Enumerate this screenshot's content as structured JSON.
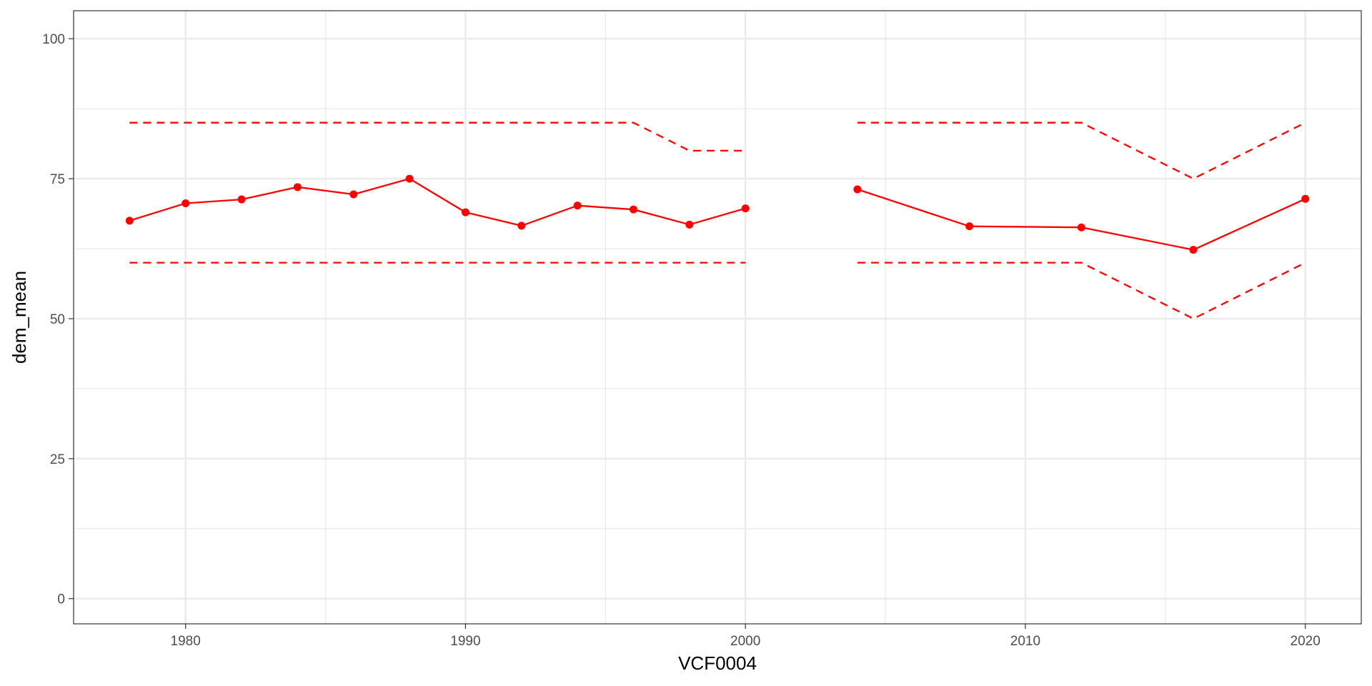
{
  "chart_data": {
    "type": "line",
    "xlabel": "VCF0004",
    "ylabel": "dem_mean",
    "xlim": [
      1976,
      2022
    ],
    "ylim": [
      0,
      100
    ],
    "x_ticks": [
      "1980",
      "1990",
      "2000",
      "2010",
      "2020"
    ],
    "y_ticks": [
      "0",
      "25",
      "50",
      "75",
      "100"
    ],
    "grid": true,
    "legend": "none",
    "colors": {
      "series": "#ff0000",
      "grid": "#ebebeb",
      "panel_border": "#333333"
    },
    "series": [
      {
        "style": "solid-with-points",
        "segments": [
          {
            "x": [
              1978,
              1980,
              1982,
              1984,
              1986,
              1988,
              1990,
              1992,
              1994,
              1996,
              1998,
              2000
            ],
            "y": [
              67.5,
              70.6,
              71.3,
              73.5,
              72.2,
              75.0,
              69.0,
              66.6,
              70.2,
              69.5,
              66.8,
              69.7
            ]
          },
          {
            "x": [
              2004,
              2008,
              2012,
              2016,
              2020
            ],
            "y": [
              73.1,
              66.5,
              66.3,
              62.3,
              71.4
            ]
          }
        ]
      },
      {
        "style": "dashed",
        "segments": [
          {
            "x": [
              1978,
              1996,
              1998,
              2000
            ],
            "y": [
              85,
              85,
              80,
              80
            ]
          },
          {
            "x": [
              2004,
              2012,
              2016,
              2020
            ],
            "y": [
              85,
              85,
              75,
              85
            ]
          }
        ]
      },
      {
        "style": "dashed",
        "segments": [
          {
            "x": [
              1978,
              2000
            ],
            "y": [
              60,
              60
            ]
          },
          {
            "x": [
              2004,
              2012,
              2016,
              2020
            ],
            "y": [
              60,
              60,
              50,
              60
            ]
          }
        ]
      }
    ]
  }
}
